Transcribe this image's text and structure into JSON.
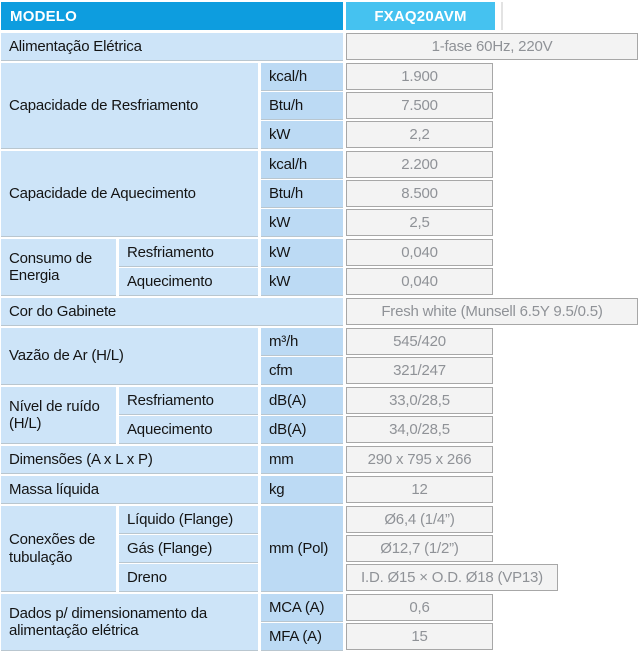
{
  "header": {
    "col1": "MODELO",
    "col2": "FXAQ20AVM"
  },
  "colors": {
    "header_dark_blue": "#0d9ddf",
    "header_light_blue": "#45c2f0",
    "label_bg": "#cde4f8",
    "unit_bg": "#bcdaf4",
    "value_bg": "#f3f3f3",
    "value_border": "#a7a7a7",
    "value_text": "#8f9297"
  },
  "rows": {
    "alimentacao": {
      "label": "Alimentação Elétrica",
      "value": "1-fase 60Hz, 220V"
    },
    "resfriamento": {
      "label": "Capacidade de Resfriamento",
      "rows": [
        {
          "unit": "kcal/h",
          "value": "1.900"
        },
        {
          "unit": "Btu/h",
          "value": "7.500"
        },
        {
          "unit": "kW",
          "value": "2,2"
        }
      ]
    },
    "aquecimento": {
      "label": "Capacidade de Aquecimento",
      "rows": [
        {
          "unit": "kcal/h",
          "value": "2.200"
        },
        {
          "unit": "Btu/h",
          "value": "8.500"
        },
        {
          "unit": "kW",
          "value": "2,5"
        }
      ]
    },
    "consumo": {
      "label": "Consumo de Energia",
      "rows": [
        {
          "sub": "Resfriamento",
          "unit": "kW",
          "value": "0,040"
        },
        {
          "sub": "Aquecimento",
          "unit": "kW",
          "value": "0,040"
        }
      ]
    },
    "cor": {
      "label": "Cor do Gabinete",
      "value": "Fresh white (Munsell 6.5Y 9.5/0.5)"
    },
    "vazao": {
      "label": "Vazão de Ar (H/L)",
      "rows": [
        {
          "unit": "m³/h",
          "value": "545/420"
        },
        {
          "unit": "cfm",
          "value": "321/247"
        }
      ]
    },
    "ruido": {
      "label": "Nível de ruído (H/L)",
      "rows": [
        {
          "sub": "Resfriamento",
          "unit": "dB(A)",
          "value": "33,0/28,5"
        },
        {
          "sub": "Aquecimento",
          "unit": "dB(A)",
          "value": "34,0/28,5"
        }
      ]
    },
    "dimensoes": {
      "label": "Dimensões (A x L x P)",
      "unit": "mm",
      "value": "290 x 795 x 266"
    },
    "massa": {
      "label": "Massa líquida",
      "unit": "kg",
      "value": "12"
    },
    "conexoes": {
      "label": "Conexões de tubulação",
      "unit": "mm (Pol)",
      "rows": [
        {
          "sub": "Líquido (Flange)",
          "value": "Ø6,4 (1/4”)"
        },
        {
          "sub": "Gás (Flange)",
          "value": "Ø12,7 (1/2”)"
        },
        {
          "sub": "Dreno",
          "value": "I.D. Ø15 × O.D. Ø18 (VP13)"
        }
      ]
    },
    "dados": {
      "label": "Dados p/ dimensionamento da alimentação elétrica",
      "rows": [
        {
          "unit": "MCA (A)",
          "value": "0,6"
        },
        {
          "unit": "MFA (A)",
          "value": "15"
        }
      ]
    }
  }
}
